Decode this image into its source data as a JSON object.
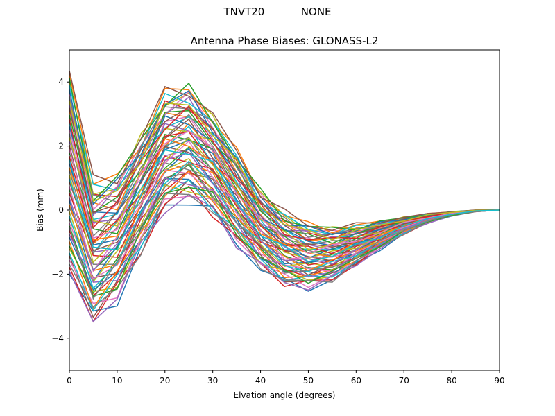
{
  "figure": {
    "suptitle": "TNVT20           NONE"
  },
  "chart_data": {
    "type": "line",
    "title": "Antenna Phase Biases: GLONASS-L2",
    "xlabel": "Elvation angle (degrees)",
    "ylabel": "Bias (mm)",
    "xlim": [
      0,
      90
    ],
    "ylim": [
      -5,
      5
    ],
    "xticks": [
      0,
      10,
      20,
      30,
      40,
      50,
      60,
      70,
      80,
      90
    ],
    "yticks": [
      -4,
      -2,
      0,
      2,
      4
    ],
    "ytick_labels": [
      "−4",
      "−2",
      "0",
      "2",
      "4"
    ],
    "grid": false,
    "x": [
      0,
      5,
      10,
      15,
      20,
      25,
      30,
      35,
      40,
      45,
      50,
      55,
      60,
      65,
      70,
      75,
      80,
      85,
      90
    ],
    "color_cycle": [
      "#1f77b4",
      "#ff7f0e",
      "#2ca02c",
      "#d62728",
      "#9467bd",
      "#8c564b",
      "#e377c2",
      "#7f7f7f",
      "#bcbd22",
      "#17becf"
    ],
    "series_count": 60,
    "series_profile": {
      "description": "Family of bias curves; each value = low + t*(high-low) with t in [0,1] per series",
      "low": [
        -2.0,
        -3.4,
        -2.7,
        -1.3,
        0.1,
        0.4,
        -0.1,
        -1.0,
        -1.8,
        -2.3,
        -2.4,
        -2.2,
        -1.7,
        -1.2,
        -0.75,
        -0.4,
        -0.18,
        -0.05,
        0
      ],
      "high": [
        4.4,
        0.8,
        1.05,
        2.3,
        3.65,
        3.85,
        2.95,
        1.8,
        0.6,
        -0.1,
        -0.45,
        -0.55,
        -0.48,
        -0.35,
        -0.22,
        -0.12,
        -0.05,
        0.0,
        0
      ]
    }
  }
}
